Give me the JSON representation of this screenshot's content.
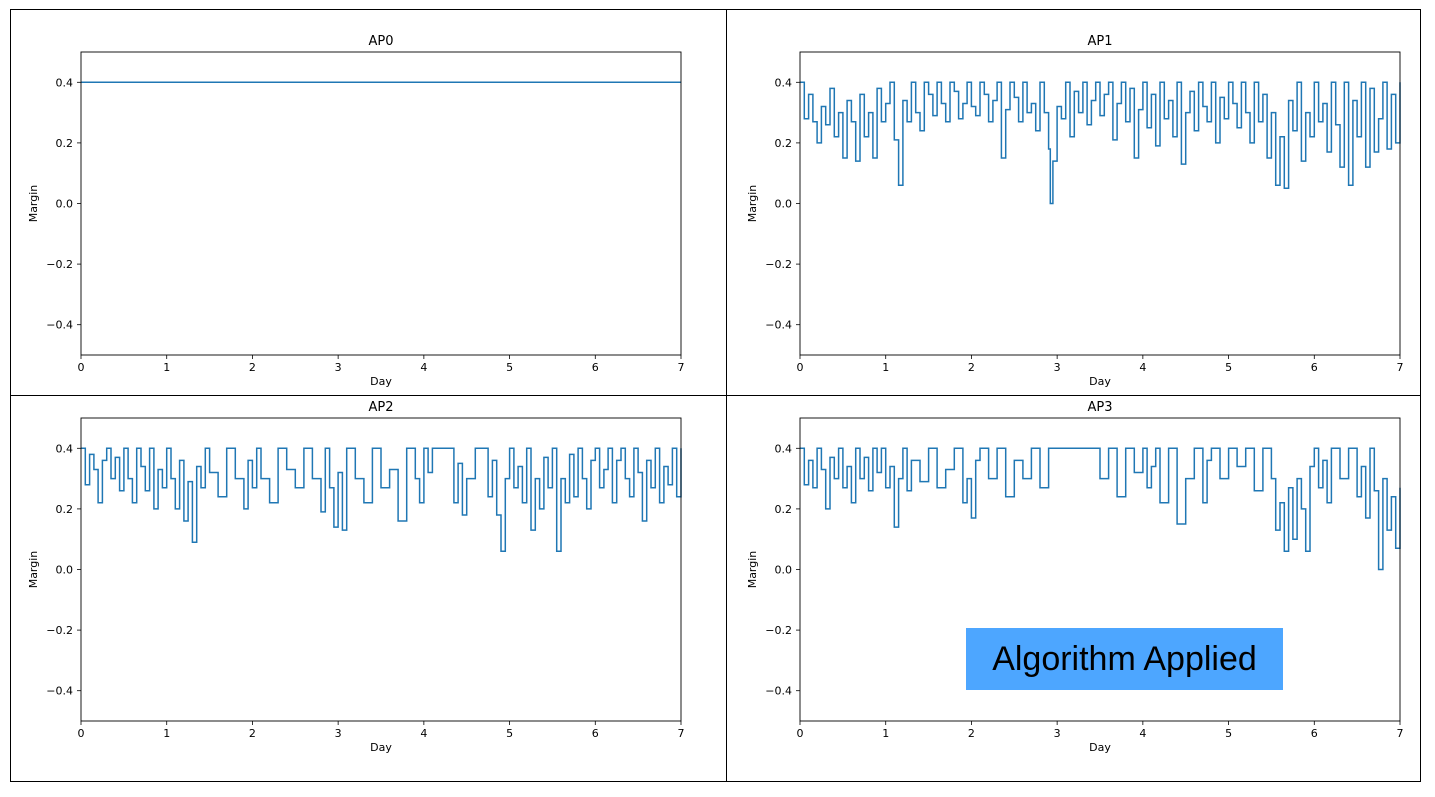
{
  "badge": {
    "label": "Algorithm Applied",
    "color": "#4da6ff"
  },
  "chart_data": [
    {
      "type": "line",
      "title": "AP0",
      "xlabel": "Day",
      "ylabel": "Margin",
      "xlim": [
        0,
        7
      ],
      "ylim": [
        -0.5,
        0.5
      ],
      "xticks": [
        0,
        1,
        2,
        3,
        4,
        5,
        6,
        7
      ],
      "yticks": [
        -0.4,
        -0.2,
        0.0,
        0.2,
        0.4
      ],
      "line_color": "#1f77b4",
      "series": [
        {
          "x": [
            0,
            7
          ],
          "y": [
            0.4,
            0.4
          ]
        }
      ]
    },
    {
      "type": "line",
      "title": "AP1",
      "xlabel": "Day",
      "ylabel": "Margin",
      "xlim": [
        0,
        7
      ],
      "ylim": [
        -0.5,
        0.5
      ],
      "xticks": [
        0,
        1,
        2,
        3,
        4,
        5,
        6,
        7
      ],
      "yticks": [
        -0.4,
        -0.2,
        0.0,
        0.2,
        0.4
      ],
      "line_color": "#1f77b4",
      "series": [
        {
          "x": [
            0,
            0.05,
            0.1,
            0.15,
            0.2,
            0.25,
            0.3,
            0.35,
            0.4,
            0.45,
            0.5,
            0.55,
            0.6,
            0.65,
            0.7,
            0.75,
            0.8,
            0.85,
            0.9,
            0.95,
            1.0,
            1.05,
            1.1,
            1.15,
            1.2,
            1.25,
            1.3,
            1.35,
            1.4,
            1.45,
            1.5,
            1.55,
            1.6,
            1.65,
            1.7,
            1.75,
            1.8,
            1.85,
            1.9,
            1.95,
            2.0,
            2.05,
            2.1,
            2.15,
            2.2,
            2.25,
            2.3,
            2.35,
            2.4,
            2.45,
            2.5,
            2.55,
            2.6,
            2.65,
            2.7,
            2.75,
            2.8,
            2.85,
            2.9,
            2.92,
            2.95,
            3.0,
            3.05,
            3.1,
            3.15,
            3.2,
            3.25,
            3.3,
            3.35,
            3.4,
            3.45,
            3.5,
            3.55,
            3.6,
            3.65,
            3.7,
            3.75,
            3.8,
            3.85,
            3.9,
            3.95,
            4.0,
            4.05,
            4.1,
            4.15,
            4.2,
            4.25,
            4.3,
            4.35,
            4.4,
            4.45,
            4.5,
            4.55,
            4.6,
            4.65,
            4.7,
            4.75,
            4.8,
            4.85,
            4.9,
            4.95,
            5.0,
            5.05,
            5.1,
            5.15,
            5.2,
            5.25,
            5.3,
            5.35,
            5.4,
            5.45,
            5.5,
            5.55,
            5.6,
            5.65,
            5.7,
            5.75,
            5.8,
            5.85,
            5.9,
            5.95,
            6.0,
            6.05,
            6.1,
            6.15,
            6.2,
            6.25,
            6.3,
            6.35,
            6.4,
            6.45,
            6.5,
            6.55,
            6.6,
            6.65,
            6.7,
            6.75,
            6.8,
            6.85,
            6.9,
            6.95,
            7.0
          ],
          "y": [
            0.4,
            0.28,
            0.36,
            0.27,
            0.2,
            0.32,
            0.26,
            0.38,
            0.22,
            0.3,
            0.15,
            0.34,
            0.27,
            0.14,
            0.36,
            0.22,
            0.3,
            0.15,
            0.38,
            0.27,
            0.33,
            0.4,
            0.21,
            0.06,
            0.34,
            0.27,
            0.4,
            0.3,
            0.24,
            0.4,
            0.36,
            0.29,
            0.4,
            0.33,
            0.27,
            0.4,
            0.37,
            0.28,
            0.33,
            0.4,
            0.32,
            0.29,
            0.4,
            0.36,
            0.27,
            0.34,
            0.4,
            0.15,
            0.31,
            0.4,
            0.35,
            0.27,
            0.4,
            0.3,
            0.33,
            0.24,
            0.4,
            0.3,
            0.18,
            0.0,
            0.14,
            0.32,
            0.28,
            0.4,
            0.22,
            0.37,
            0.3,
            0.4,
            0.26,
            0.34,
            0.4,
            0.29,
            0.36,
            0.4,
            0.21,
            0.33,
            0.4,
            0.27,
            0.38,
            0.15,
            0.31,
            0.4,
            0.25,
            0.36,
            0.19,
            0.4,
            0.28,
            0.34,
            0.22,
            0.4,
            0.13,
            0.3,
            0.37,
            0.24,
            0.4,
            0.32,
            0.27,
            0.4,
            0.2,
            0.35,
            0.28,
            0.4,
            0.33,
            0.25,
            0.4,
            0.3,
            0.2,
            0.4,
            0.27,
            0.36,
            0.15,
            0.3,
            0.06,
            0.22,
            0.05,
            0.34,
            0.24,
            0.4,
            0.14,
            0.3,
            0.22,
            0.4,
            0.27,
            0.33,
            0.17,
            0.4,
            0.26,
            0.12,
            0.4,
            0.06,
            0.34,
            0.22,
            0.4,
            0.12,
            0.38,
            0.17,
            0.28,
            0.4,
            0.18,
            0.36,
            0.2,
            0.4
          ]
        }
      ]
    },
    {
      "type": "line",
      "title": "AP2",
      "xlabel": "Day",
      "ylabel": "Margin",
      "xlim": [
        0,
        7
      ],
      "ylim": [
        -0.5,
        0.5
      ],
      "xticks": [
        0,
        1,
        2,
        3,
        4,
        5,
        6,
        7
      ],
      "yticks": [
        -0.4,
        -0.2,
        0.0,
        0.2,
        0.4
      ],
      "line_color": "#1f77b4",
      "series": [
        {
          "x": [
            0,
            0.05,
            0.1,
            0.15,
            0.2,
            0.25,
            0.3,
            0.35,
            0.4,
            0.45,
            0.5,
            0.55,
            0.6,
            0.65,
            0.7,
            0.75,
            0.8,
            0.85,
            0.9,
            0.95,
            1.0,
            1.05,
            1.1,
            1.15,
            1.2,
            1.25,
            1.3,
            1.35,
            1.4,
            1.45,
            1.5,
            1.6,
            1.7,
            1.8,
            1.9,
            1.95,
            2.0,
            2.05,
            2.1,
            2.2,
            2.3,
            2.4,
            2.5,
            2.6,
            2.7,
            2.8,
            2.85,
            2.9,
            2.95,
            3.0,
            3.05,
            3.1,
            3.2,
            3.3,
            3.4,
            3.5,
            3.6,
            3.7,
            3.8,
            3.9,
            3.95,
            4.0,
            4.05,
            4.1,
            4.2,
            4.3,
            4.35,
            4.4,
            4.45,
            4.5,
            4.6,
            4.7,
            4.75,
            4.8,
            4.85,
            4.9,
            4.95,
            5.0,
            5.05,
            5.1,
            5.15,
            5.2,
            5.25,
            5.3,
            5.35,
            5.4,
            5.45,
            5.5,
            5.55,
            5.6,
            5.65,
            5.7,
            5.75,
            5.8,
            5.85,
            5.9,
            5.95,
            6.0,
            6.05,
            6.1,
            6.15,
            6.2,
            6.25,
            6.3,
            6.35,
            6.4,
            6.45,
            6.5,
            6.55,
            6.6,
            6.65,
            6.7,
            6.75,
            6.8,
            6.85,
            6.9,
            6.95,
            7.0
          ],
          "y": [
            0.4,
            0.28,
            0.38,
            0.33,
            0.22,
            0.36,
            0.4,
            0.3,
            0.37,
            0.26,
            0.4,
            0.3,
            0.22,
            0.4,
            0.34,
            0.26,
            0.4,
            0.2,
            0.33,
            0.27,
            0.4,
            0.3,
            0.2,
            0.36,
            0.16,
            0.29,
            0.09,
            0.34,
            0.27,
            0.4,
            0.32,
            0.24,
            0.4,
            0.3,
            0.2,
            0.36,
            0.27,
            0.4,
            0.3,
            0.22,
            0.4,
            0.33,
            0.27,
            0.4,
            0.3,
            0.19,
            0.4,
            0.27,
            0.14,
            0.32,
            0.13,
            0.4,
            0.3,
            0.22,
            0.4,
            0.27,
            0.33,
            0.16,
            0.4,
            0.3,
            0.22,
            0.4,
            0.32,
            0.4,
            0.4,
            0.4,
            0.22,
            0.35,
            0.18,
            0.3,
            0.4,
            0.4,
            0.24,
            0.36,
            0.18,
            0.06,
            0.3,
            0.4,
            0.27,
            0.34,
            0.22,
            0.4,
            0.13,
            0.3,
            0.2,
            0.37,
            0.27,
            0.4,
            0.06,
            0.3,
            0.22,
            0.38,
            0.24,
            0.4,
            0.3,
            0.2,
            0.36,
            0.4,
            0.27,
            0.33,
            0.4,
            0.22,
            0.36,
            0.4,
            0.3,
            0.24,
            0.4,
            0.32,
            0.16,
            0.36,
            0.27,
            0.4,
            0.22,
            0.34,
            0.28,
            0.4,
            0.24,
            0.4
          ]
        }
      ]
    },
    {
      "type": "line",
      "title": "AP3",
      "xlabel": "Day",
      "ylabel": "Margin",
      "xlim": [
        0,
        7
      ],
      "ylim": [
        -0.5,
        0.5
      ],
      "xticks": [
        0,
        1,
        2,
        3,
        4,
        5,
        6,
        7
      ],
      "yticks": [
        -0.4,
        -0.2,
        0.0,
        0.2,
        0.4
      ],
      "line_color": "#1f77b4",
      "series": [
        {
          "x": [
            0,
            0.05,
            0.1,
            0.15,
            0.2,
            0.25,
            0.3,
            0.35,
            0.4,
            0.45,
            0.5,
            0.55,
            0.6,
            0.65,
            0.7,
            0.75,
            0.8,
            0.85,
            0.9,
            0.95,
            1.0,
            1.05,
            1.1,
            1.15,
            1.2,
            1.25,
            1.3,
            1.4,
            1.5,
            1.6,
            1.7,
            1.8,
            1.9,
            1.95,
            2.0,
            2.05,
            2.1,
            2.2,
            2.3,
            2.4,
            2.5,
            2.6,
            2.7,
            2.8,
            2.9,
            3.0,
            3.1,
            3.2,
            3.3,
            3.4,
            3.5,
            3.6,
            3.7,
            3.8,
            3.9,
            4.0,
            4.05,
            4.1,
            4.15,
            4.2,
            4.3,
            4.4,
            4.5,
            4.6,
            4.7,
            4.75,
            4.8,
            4.9,
            5.0,
            5.1,
            5.2,
            5.3,
            5.4,
            5.5,
            5.55,
            5.6,
            5.65,
            5.7,
            5.75,
            5.8,
            5.85,
            5.9,
            5.95,
            6.0,
            6.05,
            6.1,
            6.15,
            6.2,
            6.3,
            6.4,
            6.5,
            6.55,
            6.6,
            6.65,
            6.7,
            6.75,
            6.8,
            6.85,
            6.9,
            6.95,
            7.0
          ],
          "y": [
            0.4,
            0.28,
            0.36,
            0.27,
            0.4,
            0.33,
            0.2,
            0.37,
            0.3,
            0.4,
            0.27,
            0.34,
            0.22,
            0.4,
            0.3,
            0.37,
            0.26,
            0.4,
            0.32,
            0.4,
            0.27,
            0.34,
            0.14,
            0.3,
            0.4,
            0.26,
            0.36,
            0.29,
            0.4,
            0.27,
            0.33,
            0.4,
            0.22,
            0.3,
            0.17,
            0.36,
            0.4,
            0.3,
            0.4,
            0.24,
            0.36,
            0.3,
            0.4,
            0.27,
            0.4,
            0.4,
            0.4,
            0.4,
            0.4,
            0.4,
            0.3,
            0.4,
            0.24,
            0.4,
            0.32,
            0.4,
            0.27,
            0.34,
            0.4,
            0.22,
            0.4,
            0.15,
            0.3,
            0.4,
            0.22,
            0.36,
            0.4,
            0.3,
            0.4,
            0.34,
            0.4,
            0.26,
            0.4,
            0.3,
            0.13,
            0.22,
            0.06,
            0.27,
            0.1,
            0.3,
            0.2,
            0.06,
            0.34,
            0.4,
            0.27,
            0.36,
            0.22,
            0.4,
            0.3,
            0.4,
            0.24,
            0.34,
            0.17,
            0.4,
            0.26,
            0.0,
            0.3,
            0.13,
            0.24,
            0.07,
            0.27
          ]
        }
      ]
    }
  ]
}
